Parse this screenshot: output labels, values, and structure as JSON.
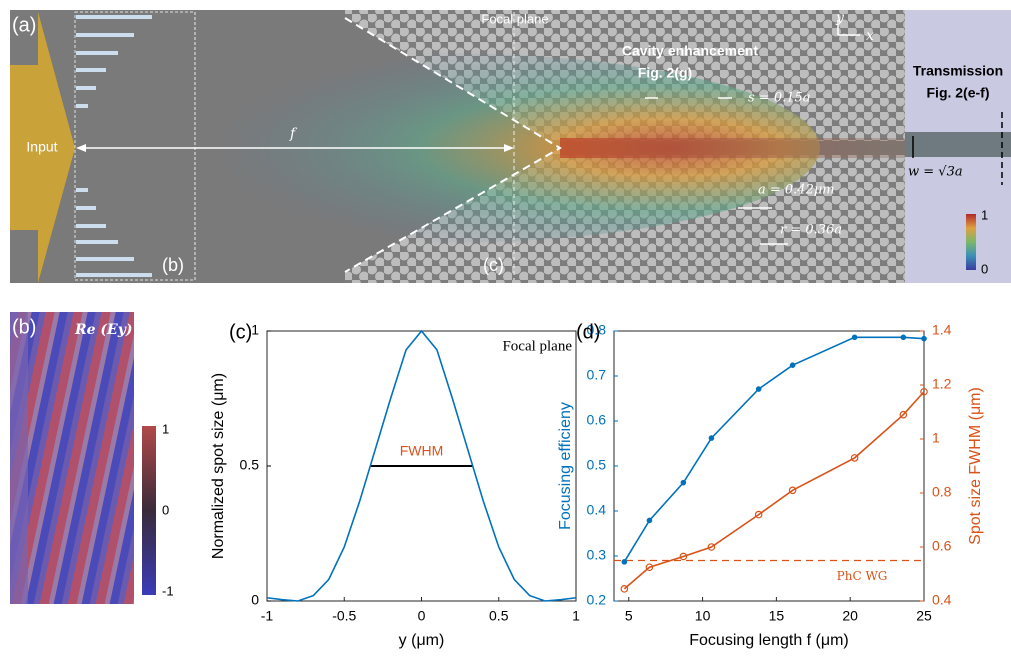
{
  "panel_a": {
    "label": "(a)",
    "input": "Input",
    "focal_plane": "Focal plane",
    "f": "f",
    "cavity": "Cavity enhancement",
    "cavity_ref": "Fig. 2(g)",
    "transmission": "Transmission",
    "transmission_ref": "Fig. 2(e-f)",
    "axis_y": "y",
    "axis_x": "x",
    "s": "s = 0.15a",
    "w": "w = √3a",
    "a": "a = 0.42μm",
    "r": "r = 0.36a",
    "sub_b": "(b)",
    "sub_c": "(c)",
    "colorbar_ticks": [
      0,
      1
    ]
  },
  "panel_b": {
    "label": "(b)",
    "field": "Re (Ey)",
    "colorbar_ticks": [
      -1,
      0,
      1
    ]
  },
  "chart_data": [
    {
      "type": "line",
      "label": "(c)",
      "note": "Focal plane",
      "fwhm_label": "FWHM",
      "fwhm_x": [
        -0.33,
        0.33
      ],
      "fwhm_y": 0.5,
      "xlabel": "y (μm)",
      "ylabel": "Normalized spot size (μm)",
      "x": [
        -1,
        -0.9,
        -0.8,
        -0.7,
        -0.6,
        -0.5,
        -0.4,
        -0.3,
        -0.2,
        -0.1,
        0,
        0.1,
        0.2,
        0.3,
        0.4,
        0.5,
        0.6,
        0.7,
        0.8,
        0.9,
        1
      ],
      "series": [
        {
          "color": "#0072bd",
          "values": [
            0.012,
            0.005,
            0.0,
            0.02,
            0.08,
            0.2,
            0.37,
            0.56,
            0.75,
            0.93,
            1,
            0.93,
            0.75,
            0.56,
            0.37,
            0.2,
            0.08,
            0.02,
            0.0,
            0.005,
            0.012
          ]
        }
      ],
      "xlim": [
        -1,
        1
      ],
      "xticks": [
        -1,
        -0.5,
        0,
        0.5,
        1
      ],
      "ylim": [
        0,
        1
      ],
      "yticks": [
        0,
        0.5,
        1
      ]
    },
    {
      "type": "line",
      "label": "(d)",
      "xlabel": "Focusing length f (μm)",
      "ylabel": "Focusing efficieny",
      "y2label": "Spot size FWHM (μm)",
      "x": [
        4.7,
        6.4,
        8.7,
        10.6,
        13.8,
        16.1,
        20.3,
        23.6,
        25
      ],
      "series": [
        {
          "color": "#0072bd",
          "marker": "dot",
          "values": [
            0.287,
            0.379,
            0.463,
            0.562,
            0.671,
            0.724,
            0.786,
            0.786,
            0.783
          ]
        },
        {
          "color": "#d95319",
          "marker": "circle",
          "axis": "y2",
          "values": [
            0.445,
            0.525,
            0.565,
            0.6,
            0.72,
            0.81,
            0.93,
            1.09,
            1.175
          ]
        }
      ],
      "reference_line": {
        "value": 0.55,
        "label": "PhC WG",
        "axis": "y2",
        "color": "#d95319"
      },
      "xlim": [
        4,
        25
      ],
      "xticks": [
        5,
        10,
        15,
        20,
        25
      ],
      "ylim": [
        0.2,
        0.8
      ],
      "yticks": [
        0.2,
        0.3,
        0.4,
        0.5,
        0.6,
        0.7,
        0.8
      ],
      "y2lim": [
        0.4,
        1.4
      ],
      "y2ticks": [
        0.4,
        0.6,
        0.8,
        1,
        1.2,
        1.4
      ]
    }
  ]
}
